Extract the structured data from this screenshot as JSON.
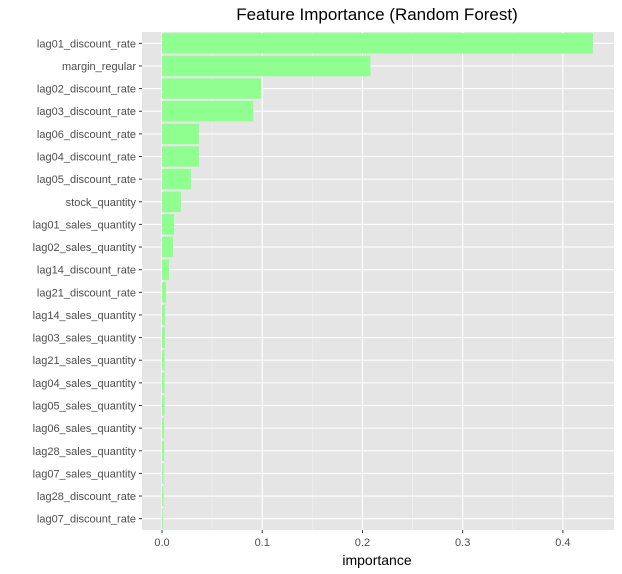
{
  "chart_data": {
    "type": "bar",
    "orientation": "horizontal",
    "title": "Feature Importance (Random Forest)",
    "xlabel": "importance",
    "ylabel": "",
    "xlim": [
      0,
      0.45
    ],
    "xticks": [
      0.0,
      0.1,
      0.2,
      0.3,
      0.4
    ],
    "xtick_labels": [
      "0.0",
      "0.1",
      "0.2",
      "0.3",
      "0.4"
    ],
    "grid": true,
    "bar_color": "#8fff8f",
    "panel_color": "#e5e5e5",
    "categories": [
      "lag01_discount_rate",
      "margin_regular",
      "lag02_discount_rate",
      "lag03_discount_rate",
      "lag06_discount_rate",
      "lag04_discount_rate",
      "lag05_discount_rate",
      "stock_quantity",
      "lag01_sales_quantity",
      "lag02_sales_quantity",
      "lag14_discount_rate",
      "lag21_discount_rate",
      "lag14_sales_quantity",
      "lag03_sales_quantity",
      "lag21_sales_quantity",
      "lag04_sales_quantity",
      "lag05_sales_quantity",
      "lag06_sales_quantity",
      "lag28_sales_quantity",
      "lag07_sales_quantity",
      "lag28_discount_rate",
      "lag07_discount_rate"
    ],
    "values": [
      0.43,
      0.208,
      0.099,
      0.091,
      0.037,
      0.037,
      0.029,
      0.019,
      0.012,
      0.011,
      0.007,
      0.004,
      0.003,
      0.003,
      0.0025,
      0.0025,
      0.0025,
      0.002,
      0.002,
      0.0015,
      0.0015,
      0.001
    ]
  }
}
